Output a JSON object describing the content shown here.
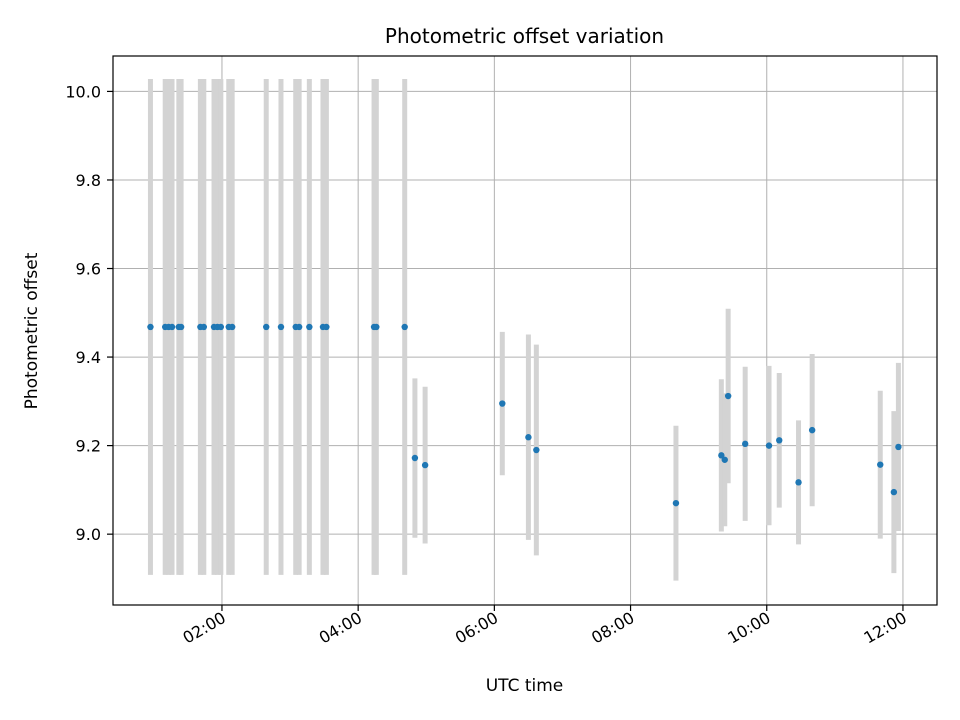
{
  "chart_data": {
    "type": "scatter",
    "title": "Photometric offset variation",
    "xlabel": "UTC time",
    "ylabel": "Photometric offset",
    "x_ticks": [
      "02:00",
      "04:00",
      "06:00",
      "08:00",
      "10:00",
      "12:00"
    ],
    "x_tick_hours": [
      2,
      4,
      6,
      8,
      10,
      12
    ],
    "y_ticks": [
      "9.0",
      "9.2",
      "9.4",
      "9.6",
      "9.8",
      "10.0"
    ],
    "y_tick_values": [
      9.0,
      9.2,
      9.4,
      9.6,
      9.8,
      10.0
    ],
    "xlim": [
      "00:24",
      "12:30"
    ],
    "ylim": [
      8.84,
      10.08
    ],
    "grid": true,
    "point_color": "#1f77b4",
    "errorbar_color": "#d3d3d3",
    "series": [
      {
        "points": [
          {
            "time": "00:57",
            "y": 9.468,
            "err": 0.56
          },
          {
            "time": "01:10",
            "y": 9.468,
            "err": 0.56
          },
          {
            "time": "01:13",
            "y": 9.468,
            "err": 0.56
          },
          {
            "time": "01:16",
            "y": 9.468,
            "err": 0.56
          },
          {
            "time": "01:22",
            "y": 9.468,
            "err": 0.56
          },
          {
            "time": "01:24",
            "y": 9.468,
            "err": 0.56
          },
          {
            "time": "01:41",
            "y": 9.468,
            "err": 0.56
          },
          {
            "time": "01:44",
            "y": 9.468,
            "err": 0.56
          },
          {
            "time": "01:53",
            "y": 9.468,
            "err": 0.56
          },
          {
            "time": "01:56",
            "y": 9.468,
            "err": 0.56
          },
          {
            "time": "01:59",
            "y": 9.468,
            "err": 0.56
          },
          {
            "time": "02:06",
            "y": 9.468,
            "err": 0.56
          },
          {
            "time": "02:09",
            "y": 9.468,
            "err": 0.56
          },
          {
            "time": "02:39",
            "y": 9.468,
            "err": 0.56
          },
          {
            "time": "02:52",
            "y": 9.468,
            "err": 0.56
          },
          {
            "time": "03:05",
            "y": 9.468,
            "err": 0.56
          },
          {
            "time": "03:08",
            "y": 9.468,
            "err": 0.56
          },
          {
            "time": "03:17",
            "y": 9.468,
            "err": 0.56
          },
          {
            "time": "03:29",
            "y": 9.468,
            "err": 0.56
          },
          {
            "time": "03:32",
            "y": 9.468,
            "err": 0.56
          },
          {
            "time": "04:14",
            "y": 9.468,
            "err": 0.56
          },
          {
            "time": "04:16",
            "y": 9.468,
            "err": 0.56
          },
          {
            "time": "04:41",
            "y": 9.468,
            "err": 0.56
          },
          {
            "time": "04:50",
            "y": 9.172,
            "err": 0.18
          },
          {
            "time": "04:59",
            "y": 9.156,
            "err": 0.177
          },
          {
            "time": "06:07",
            "y": 9.295,
            "err": 0.162
          },
          {
            "time": "06:30",
            "y": 9.219,
            "err": 0.232
          },
          {
            "time": "06:37",
            "y": 9.19,
            "err": 0.238
          },
          {
            "time": "08:40",
            "y": 9.07,
            "err": 0.175
          },
          {
            "time": "09:20",
            "y": 9.178,
            "err": 0.172
          },
          {
            "time": "09:23",
            "y": 9.168,
            "err": 0.15
          },
          {
            "time": "09:26",
            "y": 9.312,
            "err": 0.197
          },
          {
            "time": "09:41",
            "y": 9.204,
            "err": 0.174
          },
          {
            "time": "10:02",
            "y": 9.2,
            "err": 0.18
          },
          {
            "time": "10:11",
            "y": 9.212,
            "err": 0.152
          },
          {
            "time": "10:28",
            "y": 9.117,
            "err": 0.14
          },
          {
            "time": "10:40",
            "y": 9.235,
            "err": 0.172
          },
          {
            "time": "11:40",
            "y": 9.157,
            "err": 0.167
          },
          {
            "time": "11:52",
            "y": 9.095,
            "err": 0.183
          },
          {
            "time": "11:56",
            "y": 9.197,
            "err": 0.19
          }
        ]
      }
    ]
  }
}
